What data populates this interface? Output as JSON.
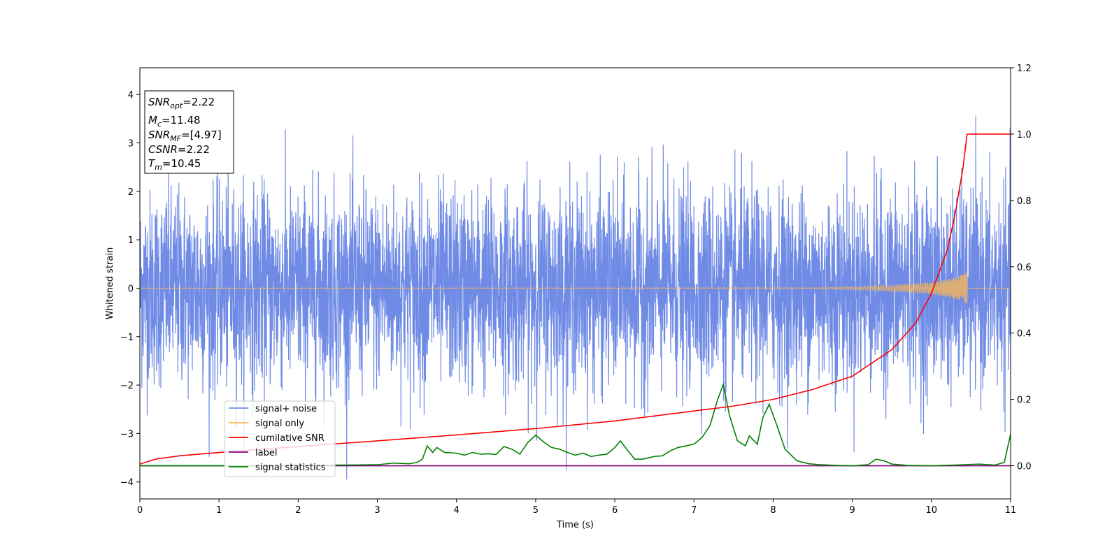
{
  "chart_data": {
    "type": "line",
    "xlabel": "Time (s)",
    "ylabel": "Whitened strain",
    "xlim": [
      0,
      11
    ],
    "ylim_left": [
      -4.35,
      4.55
    ],
    "ylim_right": [
      -0.1,
      1.2
    ],
    "xticks": [
      "0",
      "1",
      "2",
      "3",
      "4",
      "5",
      "6",
      "7",
      "8",
      "9",
      "10",
      "11"
    ],
    "yticks_left": [
      "−4",
      "−3",
      "−2",
      "−1",
      "0",
      "1",
      "2",
      "3",
      "4"
    ],
    "yticks_right": [
      "0.0",
      "0.2",
      "0.4",
      "0.6",
      "0.8",
      "1.0",
      "1.2"
    ],
    "grid": false,
    "legend_position": "lower-left",
    "legend": [
      {
        "key": "signal_noise",
        "label": "signal+ noise",
        "color": "#6f8be6"
      },
      {
        "key": "signal_only",
        "label": "signal only",
        "color": "#ffb84d"
      },
      {
        "key": "cumulative_snr",
        "label": "cumilative SNR",
        "color": "#ff0000"
      },
      {
        "key": "label",
        "label": "label",
        "color": "#800080"
      },
      {
        "key": "signal_statistics",
        "label": "signal statistics",
        "color": "#008000"
      }
    ],
    "annotation_box": {
      "snr_opt": {
        "label_main": "SNR",
        "label_sub": "opt",
        "value": "=2.22"
      },
      "mc": {
        "label_main": "M",
        "label_sub": "c",
        "value": "=11.48"
      },
      "snr_mf": {
        "label_main": "SNR",
        "label_sub": "MF",
        "value": "=[4.97]"
      },
      "csnr": {
        "label_main": "CSNR",
        "value": "=2.22"
      },
      "tm": {
        "label_main": "T",
        "label_sub": "m",
        "value": "=10.45"
      }
    },
    "series": {
      "signal_noise": {
        "axis": "left",
        "description_values": {
          "std": 1.0,
          "x_range": [
            0,
            11
          ]
        }
      },
      "signal_only": {
        "axis": "left",
        "x": [
          0,
          8.5,
          9.0,
          9.5,
          10.0,
          10.3,
          10.45,
          10.46,
          11
        ],
        "envelope": [
          0.0,
          0.01,
          0.03,
          0.06,
          0.12,
          0.22,
          0.32,
          0.0,
          0.0
        ]
      },
      "cumulative_snr": {
        "axis": "right",
        "x": [
          0,
          0.2,
          0.5,
          1,
          2,
          3,
          4,
          5,
          6,
          7,
          7.5,
          8,
          8.5,
          9,
          9.5,
          9.8,
          10.0,
          10.2,
          10.3,
          10.4,
          10.45,
          11
        ],
        "y": [
          0.005,
          0.02,
          0.03,
          0.04,
          0.058,
          0.075,
          0.093,
          0.112,
          0.135,
          0.165,
          0.18,
          0.2,
          0.23,
          0.27,
          0.35,
          0.43,
          0.52,
          0.65,
          0.76,
          0.9,
          1.0,
          1.0
        ]
      },
      "label": {
        "axis": "right",
        "x": [
          0,
          11
        ],
        "y": [
          0.0,
          0.0
        ]
      },
      "signal_statistics": {
        "axis": "right",
        "x": [
          0,
          1,
          2,
          2.5,
          3,
          3.2,
          3.4,
          3.5,
          3.57,
          3.63,
          3.7,
          3.75,
          3.85,
          4.0,
          4.1,
          4.2,
          4.3,
          4.4,
          4.5,
          4.6,
          4.7,
          4.8,
          4.9,
          5.0,
          5.1,
          5.2,
          5.3,
          5.4,
          5.5,
          5.6,
          5.7,
          5.8,
          5.9,
          6.0,
          6.07,
          6.15,
          6.25,
          6.35,
          6.45,
          6.5,
          6.6,
          6.7,
          6.8,
          6.9,
          7.0,
          7.1,
          7.2,
          7.3,
          7.37,
          7.45,
          7.55,
          7.65,
          7.7,
          7.8,
          7.87,
          7.95,
          8.05,
          8.15,
          8.3,
          8.45,
          8.6,
          8.8,
          9.0,
          9.2,
          9.3,
          9.4,
          9.5,
          9.7,
          10.0,
          10.3,
          10.6,
          10.8,
          10.92,
          11.0
        ],
        "y": [
          0.0,
          0.0,
          0.0,
          0.002,
          0.003,
          0.008,
          0.006,
          0.01,
          0.02,
          0.06,
          0.04,
          0.055,
          0.04,
          0.038,
          0.032,
          0.04,
          0.035,
          0.036,
          0.034,
          0.058,
          0.05,
          0.035,
          0.07,
          0.092,
          0.072,
          0.055,
          0.05,
          0.04,
          0.032,
          0.038,
          0.028,
          0.032,
          0.035,
          0.055,
          0.075,
          0.05,
          0.02,
          0.02,
          0.025,
          0.028,
          0.03,
          0.045,
          0.055,
          0.06,
          0.065,
          0.085,
          0.12,
          0.2,
          0.245,
          0.15,
          0.075,
          0.06,
          0.09,
          0.065,
          0.145,
          0.185,
          0.12,
          0.05,
          0.015,
          0.006,
          0.003,
          0.001,
          0.0,
          0.003,
          0.02,
          0.015,
          0.005,
          0.001,
          0.0,
          0.002,
          0.005,
          0.002,
          0.01,
          0.095
        ]
      }
    }
  }
}
